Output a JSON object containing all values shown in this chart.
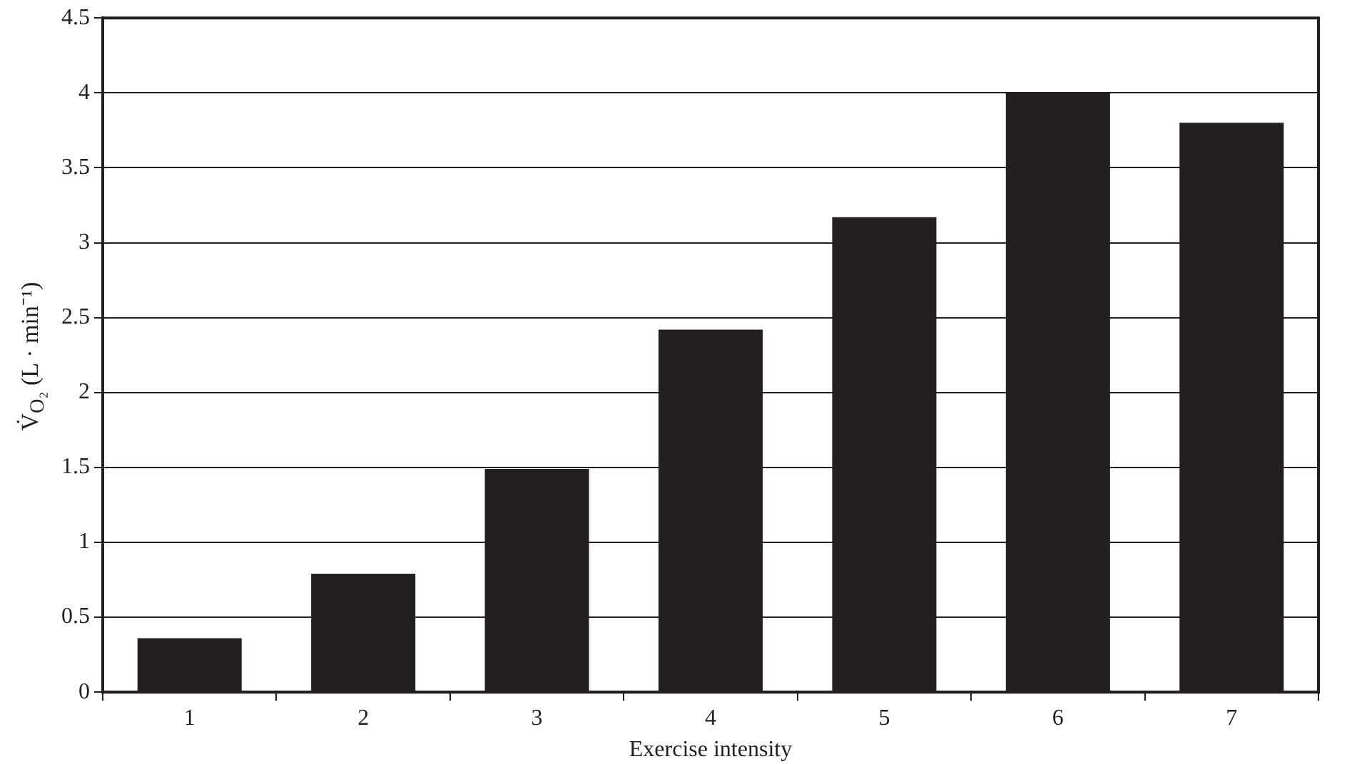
{
  "chart_data": {
    "type": "bar",
    "xlabel": "Exercise intensity",
    "ylabel": "V̇$_{O₂}$ (L · min⁻¹)",
    "categories": [
      "1",
      "2",
      "3",
      "4",
      "5",
      "6",
      "7"
    ],
    "values": [
      0.36,
      0.79,
      1.49,
      2.42,
      3.17,
      4.0,
      3.8
    ],
    "color": "#231f20",
    "ylim": [
      0,
      4.5
    ],
    "yticks": [
      0,
      0.5,
      1,
      1.5,
      2,
      2.5,
      3,
      3.5,
      4,
      4.5
    ],
    "grid": "y"
  }
}
